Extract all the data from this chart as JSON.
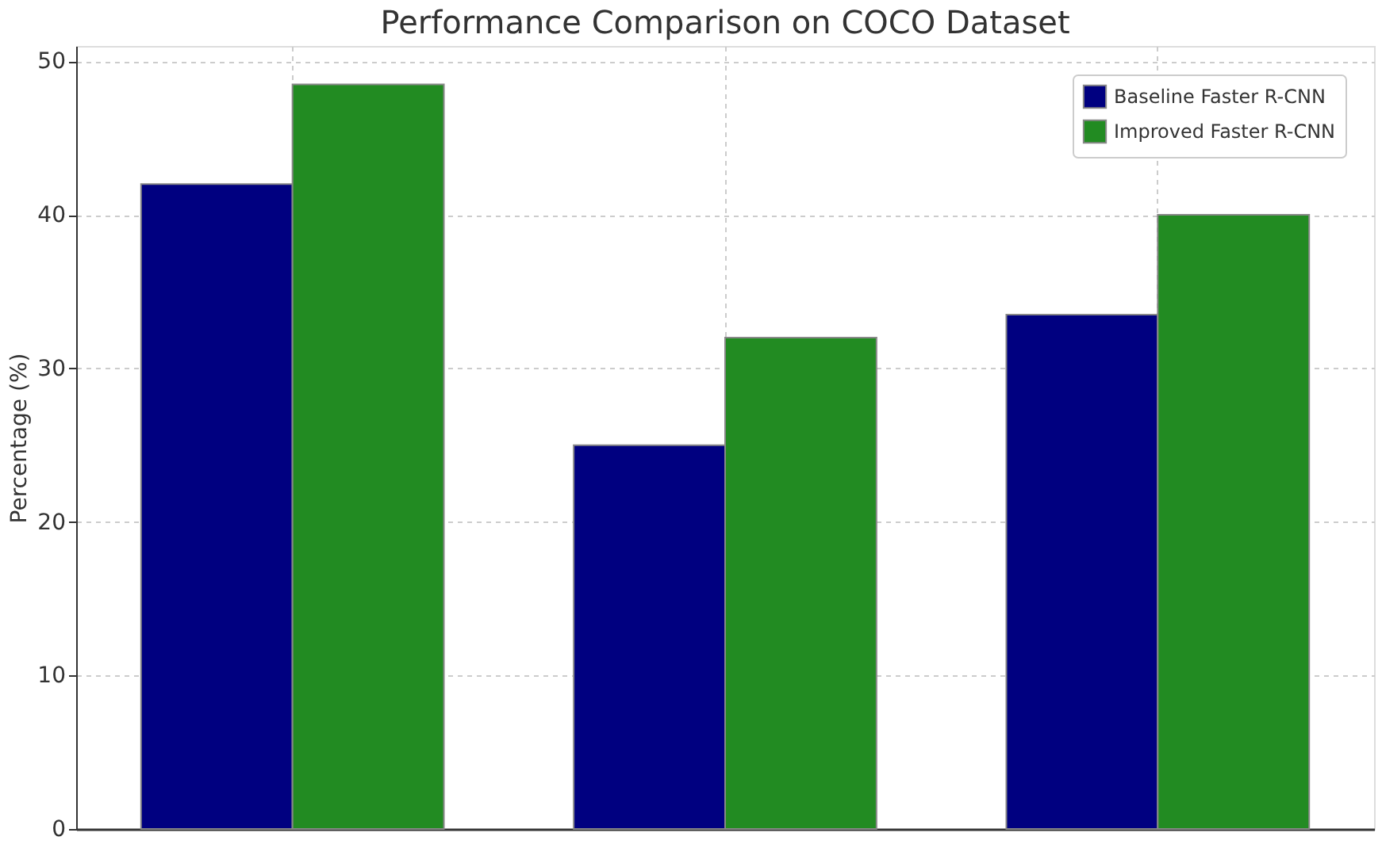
{
  "chart_data": {
    "type": "bar",
    "title": "Performance Comparison on COCO Dataset",
    "ylabel": "Percentage (%)",
    "categories": [
      null,
      null,
      null
    ],
    "series": [
      {
        "name": "Baseline Faster R-CNN",
        "color": "#000080",
        "values": [
          42,
          25,
          33.5
        ]
      },
      {
        "name": "Improved Faster R-CNN",
        "color": "#228b22",
        "values": [
          48.5,
          32,
          40
        ]
      }
    ],
    "ylim": [
      0,
      51
    ],
    "yticks": [
      0,
      10,
      20,
      30,
      40,
      50
    ],
    "grid": true,
    "legend": "top right",
    "tick_labels": "y"
  }
}
